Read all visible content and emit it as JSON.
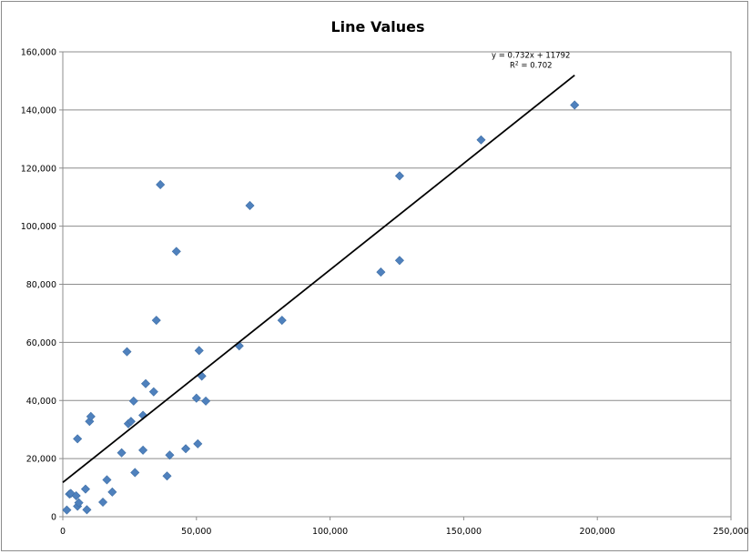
{
  "chart_data": {
    "type": "scatter",
    "title": "Line Values",
    "xlabel": "",
    "ylabel": "",
    "xlim": [
      0,
      250000
    ],
    "ylim": [
      0,
      160000
    ],
    "x_ticks": [
      0,
      50000,
      100000,
      150000,
      200000,
      250000
    ],
    "x_tick_labels": [
      "0",
      "50,000",
      "100,000",
      "150,000",
      "200,000",
      "250,000"
    ],
    "y_ticks": [
      0,
      20000,
      40000,
      60000,
      80000,
      100000,
      120000,
      140000,
      160000
    ],
    "y_tick_labels": [
      "0",
      "20,000",
      "40,000",
      "60,000",
      "80,000",
      "100,000",
      "120,000",
      "140,000",
      "160,000"
    ],
    "grid": "horizontal major",
    "marker": "diamond",
    "series_color": "#4f81bd",
    "trendline_color": "#000000",
    "series": [
      {
        "points": [
          [
            1500,
            2300
          ],
          [
            2500,
            7800
          ],
          [
            3000,
            8000
          ],
          [
            5000,
            7200
          ],
          [
            5500,
            26800
          ],
          [
            5500,
            3600
          ],
          [
            6000,
            4800
          ],
          [
            8500,
            9500
          ],
          [
            9000,
            2400
          ],
          [
            10000,
            32800
          ],
          [
            10500,
            34500
          ],
          [
            15000,
            5000
          ],
          [
            16500,
            12700
          ],
          [
            18500,
            8500
          ],
          [
            22000,
            22000
          ],
          [
            24000,
            56800
          ],
          [
            24500,
            32000
          ],
          [
            25500,
            32800
          ],
          [
            26500,
            39800
          ],
          [
            27000,
            15200
          ],
          [
            30000,
            34900
          ],
          [
            30000,
            22900
          ],
          [
            31000,
            45800
          ],
          [
            34000,
            43000
          ],
          [
            35000,
            67600
          ],
          [
            36500,
            114300
          ],
          [
            39000,
            14000
          ],
          [
            40000,
            21200
          ],
          [
            42500,
            91300
          ],
          [
            46000,
            23400
          ],
          [
            50000,
            40800
          ],
          [
            50500,
            25100
          ],
          [
            51000,
            57200
          ],
          [
            52000,
            48400
          ],
          [
            53500,
            39800
          ],
          [
            66000,
            58800
          ],
          [
            70000,
            107100
          ],
          [
            82000,
            67600
          ],
          [
            119000,
            84200
          ],
          [
            126000,
            117300
          ],
          [
            126000,
            88200
          ],
          [
            156500,
            129700
          ],
          [
            191500,
            141700
          ]
        ]
      }
    ],
    "trendline": {
      "type": "linear",
      "slope": 0.732,
      "intercept": 11792,
      "x_range": [
        0,
        191500
      ],
      "equation": "y = 0.732x + 11792",
      "r2_prefix": "R",
      "r2_sup": "2",
      "r2_value": " = 0.702"
    }
  }
}
